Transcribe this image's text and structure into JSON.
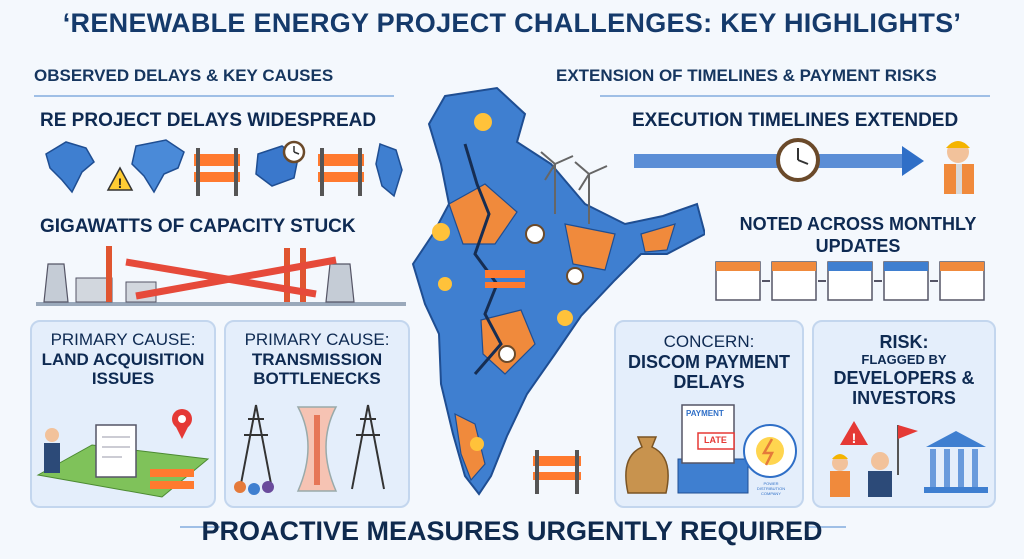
{
  "title": "‘RENEWABLE ENERGY PROJECT CHALLENGES: KEY HIGHLIGHTS’",
  "left": {
    "section_title": "OBSERVED DELAYS & KEY CAUSES",
    "delays_heading": "RE PROJECT DELAYS WIDESPREAD",
    "capacity_heading": "GIGAWATTS OF CAPACITY STUCK",
    "cause1": {
      "label": "PRIMARY CAUSE:",
      "value": "LAND ACQUISITION ISSUES"
    },
    "cause2": {
      "label": "PRIMARY CAUSE:",
      "value": "TRANSMISSION BOTTLENECKS"
    }
  },
  "right": {
    "section_title": "EXTENSION OF TIMELINES & PAYMENT RISKS",
    "timelines_heading": "EXECUTION TIMELINES EXTENDED",
    "monthly_heading": "NOTED ACROSS MONTHLY UPDATES",
    "concern": {
      "label": "CONCERN:",
      "value": "DISCOM PAYMENT DELAYS",
      "payment_doc": "PAYMENT",
      "late_stamp": "LATE",
      "seal_text": "POWER DISTRIBUTION COMPANY"
    },
    "risk": {
      "label": "RISK:",
      "flagged": "FLAGGED BY",
      "value": "DEVELOPERS & INVESTORS"
    }
  },
  "footer": "PROACTIVE MEASURES URGENTLY REQUIRED",
  "colors": {
    "accent": "#2f6fc7",
    "map_blue": "#3f7fd0",
    "map_orange": "#f08a3c",
    "alert": "#e53935",
    "card_bg": "#e4eefb"
  },
  "icons": [
    "sun-icon",
    "clock-icon",
    "wind-turbine-icon",
    "warning-icon",
    "barricade-icon",
    "calendar-icon",
    "power-plant-icon",
    "transmission-tower-icon",
    "location-pin-icon",
    "bank-icon",
    "flag-icon",
    "money-bag-icon",
    "worker-icon"
  ]
}
